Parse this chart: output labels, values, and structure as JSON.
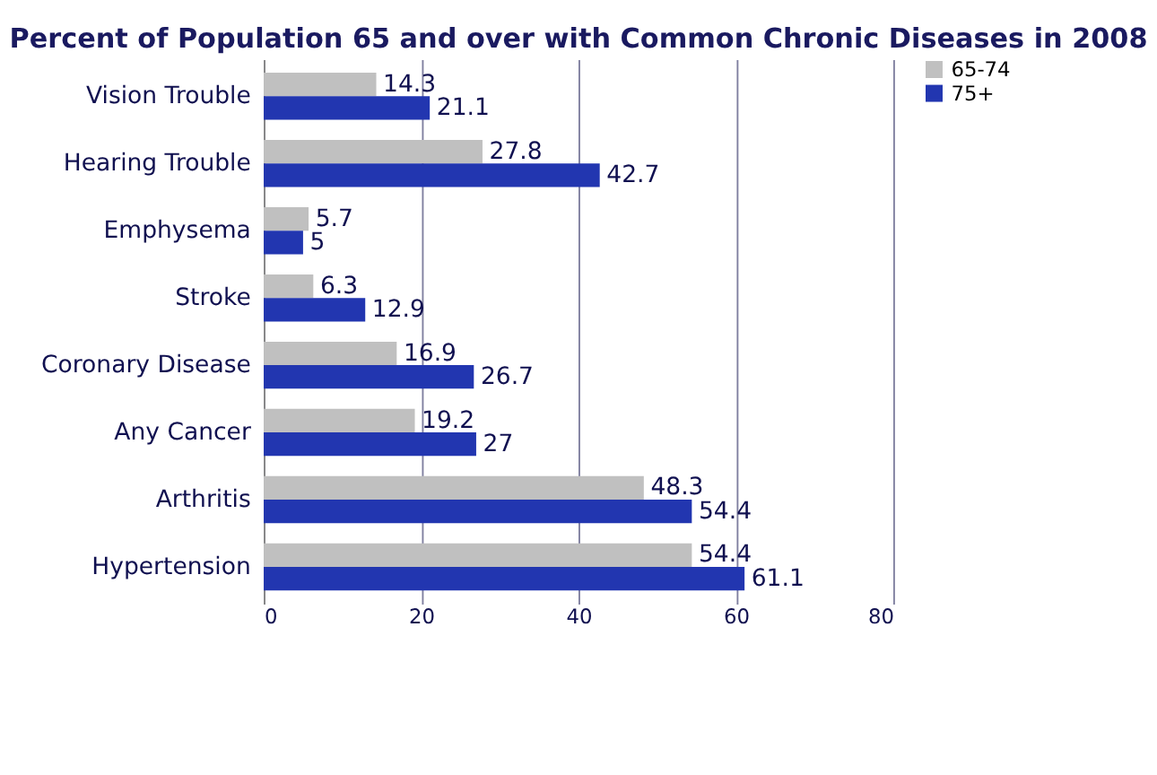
{
  "chart_data": {
    "type": "bar",
    "orientation": "horizontal",
    "title": "Percent of Population 65 and over with Common Chronic Diseases in 2008",
    "categories": [
      "Vision Trouble",
      "Hearing Trouble",
      "Emphysema",
      "Stroke",
      "Coronary Disease",
      "Any Cancer",
      "Arthritis",
      "Hypertension"
    ],
    "series": [
      {
        "name": "65-74",
        "color": "#c0c0c0",
        "values": [
          14.3,
          27.8,
          5.7,
          6.3,
          16.9,
          19.2,
          48.3,
          54.4
        ]
      },
      {
        "name": "75+",
        "color": "#2236b0",
        "values": [
          21.1,
          42.7,
          5,
          12.9,
          26.7,
          27,
          54.4,
          61.1
        ]
      }
    ],
    "xlim": [
      0,
      80
    ],
    "xticks": [
      0,
      20,
      40,
      60,
      80
    ],
    "grid": "x",
    "legend": "right",
    "data_labels": true
  }
}
